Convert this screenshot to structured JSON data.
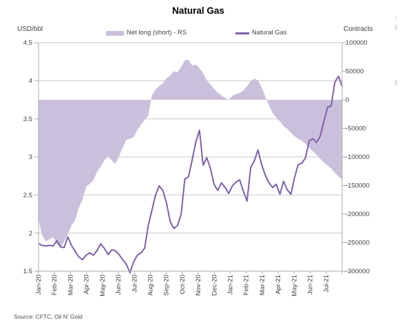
{
  "title": "Natural Gas",
  "source_note": "Source: CFTC, Oil N' Gold",
  "legend": [
    {
      "label": "Net long (short) - RS",
      "swatch": "area-swatch",
      "color": "#CBC0DC"
    },
    {
      "label": "Natural Gas",
      "swatch": "line-swatch",
      "color": "#7D5FA8"
    }
  ],
  "edge_artifacts": [
    ";",
    ")",
    ")"
  ],
  "colors": {
    "area_fill": "#CBC0DC",
    "line_stroke": "#7D5FA8",
    "gridline": "#C9C9C9",
    "axis_line": "#ABABAB",
    "tick_text": "#3f3f3f"
  },
  "chart_data": {
    "type": "area",
    "subtype": "combo: shaded area on right axis + line on left axis, weekly data",
    "title": "Natural Gas",
    "frequency": "weekly, Jan-2020 through late Jul-2021",
    "x_tick_labels": [
      "Jan-20",
      "Feb-20",
      "Mar-20",
      "Apr-20",
      "May-20",
      "Jun-20",
      "Jul-20",
      "Aug-20",
      "Sep-20",
      "Oct-20",
      "Nov-20",
      "Dec-20",
      "Jan-21",
      "Feb-21",
      "Mar-21",
      "Apr-21",
      "May-21",
      "Jun-21",
      "Jul-21"
    ],
    "left_axis": {
      "title": "USD/bbl",
      "min": 1.5,
      "max": 4.5,
      "step": 0.5,
      "tick_labels": [
        "4.5",
        "4",
        "3.5",
        "3",
        "2.5",
        "2",
        "1.5"
      ]
    },
    "right_axis": {
      "title": "Contracts",
      "min": -300000,
      "max": 100000,
      "step": 50000,
      "tick_labels": [
        "100000",
        "50000",
        "0",
        "-50000",
        "-100000",
        "-150000",
        "-200000",
        "-250000",
        "-300000"
      ]
    },
    "grid": "horizontal gridlines at each left-axis tick",
    "legend_position": "top",
    "series": [
      {
        "name": "Natural Gas",
        "type": "line",
        "axis": "left",
        "color": "#7D5FA8",
        "values": [
          1.86,
          1.84,
          1.83,
          1.84,
          1.83,
          1.9,
          1.82,
          1.81,
          1.95,
          1.84,
          1.76,
          1.69,
          1.65,
          1.71,
          1.74,
          1.71,
          1.77,
          1.86,
          1.8,
          1.72,
          1.78,
          1.77,
          1.72,
          1.65,
          1.59,
          1.48,
          1.62,
          1.71,
          1.74,
          1.8,
          2.1,
          2.3,
          2.5,
          2.62,
          2.56,
          2.39,
          2.15,
          2.06,
          2.1,
          2.25,
          2.71,
          2.74,
          2.96,
          3.2,
          3.35,
          2.89,
          2.99,
          2.85,
          2.64,
          2.56,
          2.66,
          2.6,
          2.52,
          2.62,
          2.67,
          2.7,
          2.55,
          2.42,
          2.86,
          2.95,
          3.09,
          2.9,
          2.76,
          2.66,
          2.6,
          2.64,
          2.51,
          2.68,
          2.57,
          2.51,
          2.73,
          2.9,
          2.92,
          2.99,
          3.21,
          3.24,
          3.19,
          3.27,
          3.46,
          3.65,
          3.67,
          3.98,
          4.06,
          3.93
        ]
      },
      {
        "name": "Net long (short) - RS",
        "type": "area",
        "axis": "right",
        "color": "#CBC0DC",
        "baseline": 0,
        "values": [
          -210000,
          -238000,
          -248000,
          -244000,
          -241000,
          -252000,
          -259000,
          -248000,
          -236000,
          -220000,
          -211000,
          -189000,
          -175000,
          -152000,
          -147000,
          -141000,
          -126000,
          -117000,
          -106000,
          -99000,
          -106000,
          -112000,
          -99000,
          -84000,
          -70000,
          -68000,
          -66000,
          -53000,
          -44000,
          -35000,
          -28000,
          8000,
          18000,
          24000,
          29000,
          38000,
          42000,
          50000,
          48000,
          58000,
          69000,
          70000,
          60000,
          62000,
          55000,
          47000,
          34000,
          27000,
          19000,
          13000,
          8000,
          3000,
          0,
          7000,
          10000,
          12000,
          16000,
          24000,
          33000,
          37000,
          34000,
          22000,
          6000,
          -10000,
          -23000,
          -31000,
          -38000,
          -46000,
          -51000,
          -58000,
          -64000,
          -68000,
          -72000,
          -77000,
          -84000,
          -90000,
          -96000,
          -103000,
          -110000,
          -115000,
          -120000,
          -128000,
          -134000,
          -140000
        ]
      }
    ]
  }
}
